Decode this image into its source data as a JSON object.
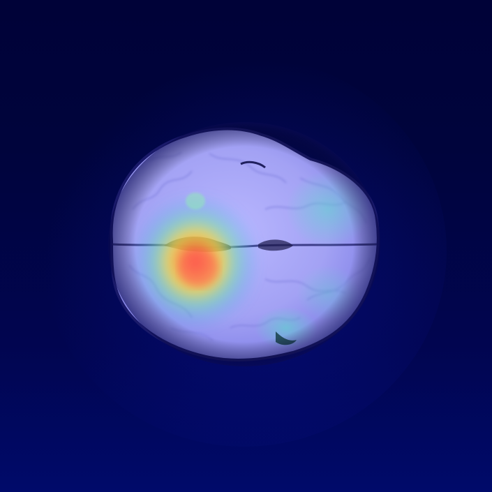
{
  "image": {
    "subject": "brain-mri-axial-slice",
    "overlay": "heatmap",
    "colors": {
      "background": "#01023a",
      "tissue": "#9b9cf2",
      "tissue_light": "#c4c3ff",
      "hotspot_core": "#ff5a4a",
      "hotspot_mid": "#f5d94a",
      "hotspot_outer": "#5fe0b4",
      "cool_region": "#4fd6c4"
    }
  }
}
